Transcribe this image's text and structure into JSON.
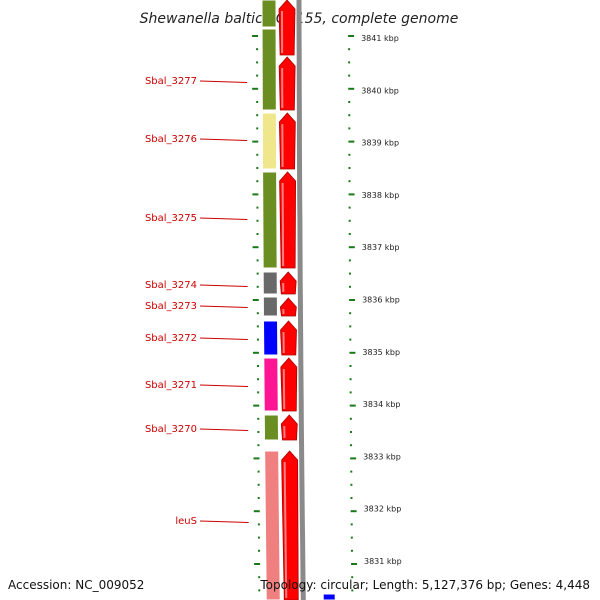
{
  "title": "Shewanella baltica OS155, complete genome",
  "accession": "Accession: NC_009052",
  "summary": "Topology: circular; Length: 5,127,376 bp; Genes: 4,448",
  "colors": {
    "cds_strand": "#ff0000",
    "axis": "#888888",
    "tick": "#1a7a1a",
    "label": "#cc0000"
  },
  "gene_labels": [
    "Sbal_3277",
    "Sbal_3276",
    "Sbal_3275",
    "Sbal_3274",
    "Sbal_3273",
    "Sbal_3272",
    "Sbal_3271",
    "Sbal_3270",
    "leuS"
  ],
  "scale_labels": [
    "3841 kbp",
    "3840 kbp",
    "3839 kbp",
    "3838 kbp",
    "3837 kbp",
    "3836 kbp",
    "3835 kbp",
    "3834 kbp",
    "3833 kbp",
    "3832 kbp",
    "3831 kbp"
  ],
  "genes": [
    {
      "name": "",
      "color": "#6b8e23"
    },
    {
      "name": "Sbal_3277",
      "color": "#6b8e23"
    },
    {
      "name": "Sbal_3276",
      "color": "#f0e68c"
    },
    {
      "name": "Sbal_3275",
      "color": "#6b8e23"
    },
    {
      "name": "Sbal_3274",
      "color": "#696969"
    },
    {
      "name": "Sbal_3273",
      "color": "#696969"
    },
    {
      "name": "Sbal_3272",
      "color": "#0000ff"
    },
    {
      "name": "Sbal_3271",
      "color": "#ff1493"
    },
    {
      "name": "Sbal_3270",
      "color": "#6b8e23"
    },
    {
      "name": "leuS",
      "color": "#f08080"
    },
    {
      "name": "",
      "color": "#0000ff"
    }
  ]
}
